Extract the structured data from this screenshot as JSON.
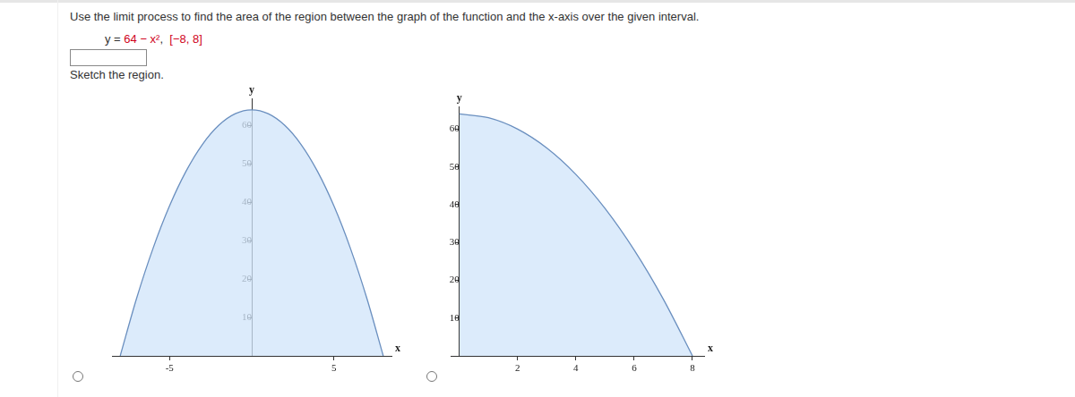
{
  "header": {
    "instruction": "Use the limit process to find the area of the region between the graph of the function and the x-axis over the given interval.",
    "function_lhs": "y =",
    "function_rhs": "64 − x²",
    "interval": "[−8, 8]"
  },
  "prompt": "Sketch the region.",
  "chart_data": [
    {
      "type": "area",
      "x": [
        -8,
        -7,
        -6,
        -5,
        -4,
        -3,
        -2,
        -1,
        0,
        1,
        2,
        3,
        4,
        5,
        6,
        7,
        8
      ],
      "values": [
        0,
        15,
        28,
        39,
        48,
        55,
        60,
        63,
        64,
        63,
        60,
        55,
        48,
        39,
        28,
        15,
        0
      ],
      "xlabel": "x",
      "ylabel": "y",
      "xlim": [
        -8.5,
        8.5
      ],
      "ylim": [
        0,
        67
      ],
      "xticks": [
        -5,
        5
      ],
      "yticks": [
        10,
        20,
        30,
        40,
        50,
        60
      ],
      "color": "#6a8fbf",
      "grid": false
    },
    {
      "type": "area",
      "x": [
        0,
        1,
        2,
        3,
        4,
        5,
        6,
        7,
        8
      ],
      "values": [
        64,
        63,
        60,
        55,
        48,
        39,
        28,
        15,
        0
      ],
      "xlabel": "x",
      "ylabel": "y",
      "xlim": [
        -0.3,
        8.4
      ],
      "ylim": [
        0,
        66
      ],
      "xticks": [
        2,
        4,
        6,
        8
      ],
      "yticks": [
        10,
        20,
        30,
        40,
        50,
        60
      ],
      "color": "#6a8fbf",
      "grid": false
    }
  ]
}
